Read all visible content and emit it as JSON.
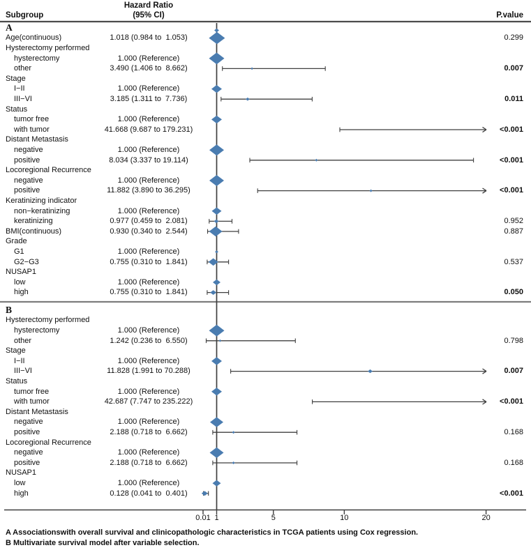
{
  "header": {
    "subgroup": "Subgroup",
    "hr_line1": "Hazard Ratio",
    "hr_line2": "(95% CI)",
    "pvalue": "P.value"
  },
  "footnotes": [
    "A Associationswith overall survival and clinicopathologic characteristics in TCGA patients using Cox regression.",
    "B Multivariate survival model after variable selection."
  ],
  "chart_data": {
    "type": "forest",
    "colors": {
      "diamond": "#4a7cb0",
      "line": "#3f3f3f",
      "header_rule": "#4b4b4b",
      "divider": "#7d7d7d"
    },
    "axis": {
      "tick_labels": [
        "0.01",
        "1",
        "5",
        "10",
        "20"
      ],
      "tick_values": [
        0.01,
        1,
        5,
        10,
        20
      ],
      "reference_line": 1,
      "scale_note": "linear 1-20 right of reference, compressed 0.01-1 left of reference",
      "top_marker": true
    },
    "sections": [
      {
        "label": "A",
        "rows": [
          {
            "label": "Age(continuous)",
            "indent": false,
            "hr": "1.018 (0.984 to  1.053)",
            "p": "0.299",
            "pbold": false,
            "est": 1.018,
            "lo": 0.984,
            "hi": 1.053,
            "size": 23
          },
          {
            "label": "Hysterectomy performed",
            "group": true
          },
          {
            "label": "hysterectomy",
            "indent": true,
            "hr": "1.000 (Reference)",
            "ref": true,
            "size": 22
          },
          {
            "label": "other",
            "indent": true,
            "hr": "3.490 (1.406 to  8.662)",
            "p": "0.007",
            "pbold": true,
            "est": 3.49,
            "lo": 1.406,
            "hi": 8.662,
            "size": 3
          },
          {
            "label": "Stage",
            "group": true
          },
          {
            "label": "I−II",
            "indent": true,
            "hr": "1.000 (Reference)",
            "ref": true,
            "size": 15
          },
          {
            "label": "III−VI",
            "indent": true,
            "hr": "3.185 (1.311 to  7.736)",
            "p": "0.011",
            "pbold": true,
            "est": 3.185,
            "lo": 1.311,
            "hi": 7.736,
            "size": 6
          },
          {
            "label": "Status",
            "group": true
          },
          {
            "label": "tumor free",
            "indent": true,
            "hr": "1.000 (Reference)",
            "ref": true,
            "size": 15
          },
          {
            "label": "with tumor",
            "indent": true,
            "hr": "41.668 (9.687 to 179.231)",
            "p": "<0.001",
            "pbold": true,
            "est": 41.668,
            "lo": 9.687,
            "hi": 179.231,
            "size": 0
          },
          {
            "label": "Distant Metastasis",
            "group": true
          },
          {
            "label": "negative",
            "indent": true,
            "hr": "1.000 (Reference)",
            "ref": true,
            "size": 21
          },
          {
            "label": "positive",
            "indent": true,
            "hr": "8.034 (3.337 to 19.114)",
            "p": "<0.001",
            "pbold": true,
            "est": 8.034,
            "lo": 3.337,
            "hi": 19.114,
            "size": 4
          },
          {
            "label": "Locoregional Recurrence",
            "group": true
          },
          {
            "label": "negative",
            "indent": true,
            "hr": "1.000 (Reference)",
            "ref": true,
            "size": 21
          },
          {
            "label": "positive",
            "indent": true,
            "hr": "11.882 (3.890 to 36.295)",
            "p": "<0.001",
            "pbold": true,
            "est": 11.882,
            "lo": 3.89,
            "hi": 36.295,
            "size": 4
          },
          {
            "label": "Keratinizing indicator",
            "group": true
          },
          {
            "label": "non−keratinizing",
            "indent": true,
            "hr": "1.000 (Reference)",
            "ref": true,
            "size": 14
          },
          {
            "label": "keratinizing",
            "indent": true,
            "hr": "0.977 (0.459 to  2.081)",
            "p": "0.952",
            "pbold": false,
            "est": 0.977,
            "lo": 0.459,
            "hi": 2.081,
            "size": 7
          },
          {
            "label": "BMI(continuous)",
            "indent": false,
            "hr": "0.930 (0.340 to  2.544)",
            "p": "0.887",
            "pbold": false,
            "est": 0.93,
            "lo": 0.34,
            "hi": 2.544,
            "size": 19
          },
          {
            "label": "Grade",
            "group": true
          },
          {
            "label": "G1",
            "indent": true,
            "hr": "1.000 (Reference)",
            "ref": true,
            "size": 5
          },
          {
            "label": "G2−G3",
            "indent": true,
            "hr": "0.755 (0.310 to  1.841)",
            "p": "0.537",
            "pbold": false,
            "est": 0.755,
            "lo": 0.31,
            "hi": 1.841,
            "size": 14
          },
          {
            "label": "NUSAP1",
            "group": true
          },
          {
            "label": "low",
            "indent": true,
            "hr": "1.000 (Reference)",
            "ref": true,
            "size": 11
          },
          {
            "label": "high",
            "indent": true,
            "hr": "0.755 (0.310 to  1.841)",
            "p": "0.050",
            "pbold": true,
            "est": 0.755,
            "lo": 0.31,
            "hi": 1.841,
            "size": 9
          }
        ]
      },
      {
        "label": "B",
        "rows": [
          {
            "label": "Hysterectomy performed",
            "group": true
          },
          {
            "label": "hysterectomy",
            "indent": true,
            "hr": "1.000 (Reference)",
            "ref": true,
            "size": 22
          },
          {
            "label": "other",
            "indent": true,
            "hr": "1.242 (0.236 to  6.550)",
            "p": "0.798",
            "pbold": false,
            "est": 1.242,
            "lo": 0.236,
            "hi": 6.55,
            "size": 3
          },
          {
            "label": "Stage",
            "group": true
          },
          {
            "label": "I−II",
            "indent": true,
            "hr": "1.000 (Reference)",
            "ref": true,
            "size": 15
          },
          {
            "label": "III−VI",
            "indent": true,
            "hr": "11.828 (1.991 to 70.288)",
            "p": "0.007",
            "pbold": true,
            "est": 11.828,
            "lo": 1.991,
            "hi": 70.288,
            "size": 7
          },
          {
            "label": "Status",
            "group": true
          },
          {
            "label": "tumor free",
            "indent": true,
            "hr": "1.000 (Reference)",
            "ref": true,
            "size": 15
          },
          {
            "label": "with tumor",
            "indent": true,
            "hr": "42.687 (7.747 to 235.222)",
            "p": "<0.001",
            "pbold": true,
            "est": 42.687,
            "lo": 7.747,
            "hi": 235.222,
            "size": 0
          },
          {
            "label": "Distant Metastasis",
            "group": true
          },
          {
            "label": "negative",
            "indent": true,
            "hr": "1.000 (Reference)",
            "ref": true,
            "size": 19
          },
          {
            "label": "positive",
            "indent": true,
            "hr": "2.188 (0.718 to  6.662)",
            "p": "0.168",
            "pbold": false,
            "est": 2.188,
            "lo": 0.718,
            "hi": 6.662,
            "size": 4
          },
          {
            "label": "Locoregional Recurrence",
            "group": true
          },
          {
            "label": "negative",
            "indent": true,
            "hr": "1.000 (Reference)",
            "ref": true,
            "size": 20
          },
          {
            "label": "positive",
            "indent": true,
            "hr": "2.188 (0.718 to  6.662)",
            "p": "0.168",
            "pbold": false,
            "est": 2.188,
            "lo": 0.718,
            "hi": 6.662,
            "size": 4
          },
          {
            "label": "NUSAP1",
            "group": true
          },
          {
            "label": "low",
            "indent": true,
            "hr": "1.000 (Reference)",
            "ref": true,
            "size": 12
          },
          {
            "label": "high",
            "indent": true,
            "hr": "0.128 (0.041 to  0.401)",
            "p": "<0.001",
            "pbold": true,
            "est": 0.128,
            "lo": 0.041,
            "hi": 0.401,
            "size": 9
          }
        ]
      }
    ]
  }
}
